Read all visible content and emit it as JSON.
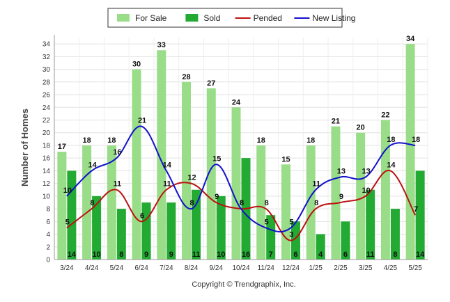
{
  "chart_data": {
    "type": "bar",
    "title": "",
    "xlabel": "",
    "ylabel": "Number of Homes",
    "ylim": [
      0,
      35
    ],
    "yticks": [
      0,
      2,
      4,
      6,
      8,
      10,
      12,
      14,
      16,
      18,
      20,
      22,
      24,
      26,
      28,
      30,
      32,
      34
    ],
    "grid": true,
    "legend_position": "top-center",
    "categories": [
      "3/24",
      "4/24",
      "5/24",
      "6/24",
      "7/24",
      "8/24",
      "9/24",
      "10/24",
      "11/24",
      "12/24",
      "1/25",
      "2/25",
      "3/25",
      "4/25",
      "5/25"
    ],
    "series": [
      {
        "name": "For Sale",
        "kind": "bar",
        "color": "#99dd88",
        "values": [
          17,
          18,
          18,
          30,
          33,
          28,
          27,
          24,
          18,
          15,
          18,
          21,
          20,
          22,
          34
        ]
      },
      {
        "name": "Sold",
        "kind": "bar",
        "color": "#22aa33",
        "values": [
          14,
          10,
          8,
          9,
          9,
          11,
          10,
          16,
          7,
          6,
          4,
          6,
          11,
          8,
          14
        ]
      },
      {
        "name": "Pended",
        "kind": "line",
        "color": "#bb1111",
        "values": [
          5,
          8,
          11,
          6,
          11,
          12,
          9,
          8,
          8,
          3,
          8,
          9,
          10,
          14,
          7
        ]
      },
      {
        "name": "New Listing",
        "kind": "line",
        "color": "#1111cc",
        "values": [
          10,
          14,
          16,
          21,
          14,
          8,
          15,
          8,
          5,
          5,
          11,
          13,
          13,
          18,
          18
        ]
      }
    ]
  },
  "footer": "Copyright © Trendgraphix, Inc."
}
